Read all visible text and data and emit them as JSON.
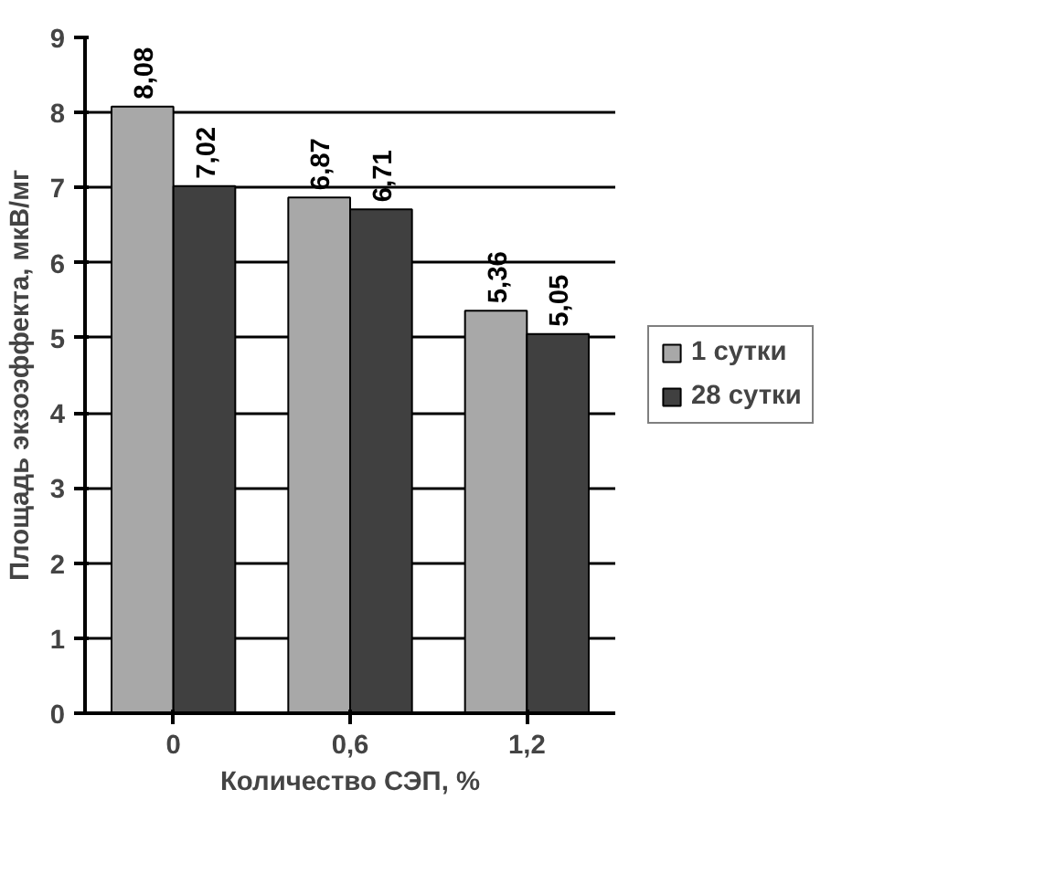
{
  "chart_data": {
    "type": "bar",
    "xlabel": "Количество СЭП, %",
    "ylabel": "Площадь экзоэффекта, мкВ/мг",
    "categories": [
      "0",
      "0,6",
      "1,2"
    ],
    "series": [
      {
        "name": "1 сутки",
        "color": "#a8a8a8",
        "values": [
          8.08,
          6.87,
          5.36
        ],
        "value_labels": [
          "8,08",
          "6,87",
          "5,36"
        ]
      },
      {
        "name": "28 сутки",
        "color": "#404040",
        "values": [
          7.02,
          6.71,
          5.05
        ],
        "value_labels": [
          "7,02",
          "6,71",
          "5,05"
        ]
      }
    ],
    "ylim": [
      0,
      9
    ],
    "yticks": [
      0,
      1,
      2,
      3,
      4,
      5,
      6,
      7,
      8,
      9
    ],
    "grid": "y",
    "legend": "right"
  }
}
